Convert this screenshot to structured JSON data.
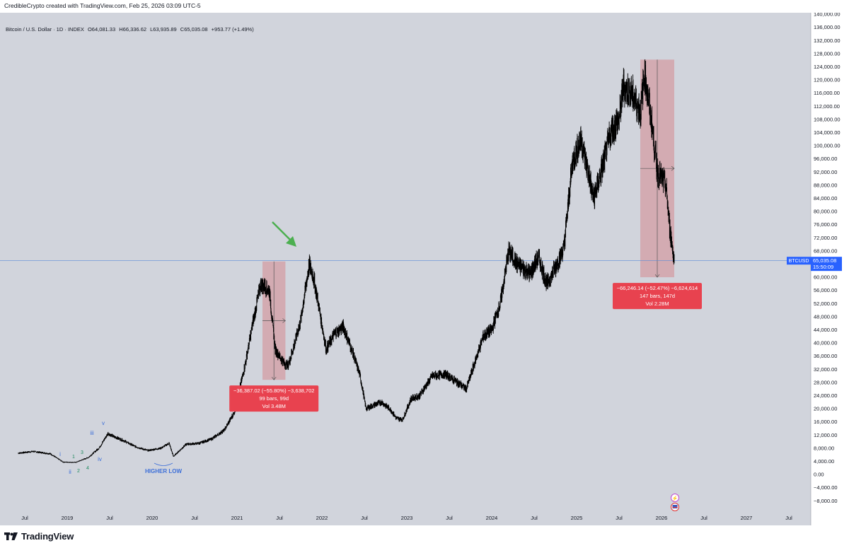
{
  "header": {
    "credit": "CredibleCrypto created with TradingView.com, Feb 25, 2026 03:09 UTC-5"
  },
  "legend": {
    "symbol": "Bitcoin / U.S. Dollar · 1D · INDEX",
    "open": "O64,081.33",
    "high": "H66,336.62",
    "low": "L63,935.89",
    "close": "C65,035.08",
    "change": "+953.77 (+1.49%)"
  },
  "colors": {
    "background": "#d1d4dc",
    "candle": "#000000",
    "box_fill": "#d4a3aa",
    "label_red": "#e8424f",
    "price_line": "#5b8cd6",
    "badge_blue": "#2962ff",
    "arrow_green": "#4caf50",
    "wave_blue": "#3d6fd8",
    "wave_green": "#1f8a5e"
  },
  "chart_data": {
    "type": "line",
    "title": "",
    "xlabel": "",
    "ylabel": "",
    "x_ticks": [
      "Jul",
      "2019",
      "Jul",
      "2020",
      "Jul",
      "2021",
      "Jul",
      "2022",
      "Jul",
      "2023",
      "Jul",
      "2024",
      "Jul",
      "2025",
      "Jul",
      "2026",
      "Jul",
      "2027",
      "Jul"
    ],
    "y_ticks": [
      "140,000.00",
      "136,000.00",
      "132,000.00",
      "128,000.00",
      "124,000.00",
      "120,000.00",
      "116,000.00",
      "112,000.00",
      "108,000.00",
      "104,000.00",
      "100,000.00",
      "96,000.00",
      "92,000.00",
      "88,000.00",
      "84,000.00",
      "80,000.00",
      "76,000.00",
      "72,000.00",
      "68,000.00",
      "64,000.00",
      "60,000.00",
      "56,000.00",
      "52,000.00",
      "48,000.00",
      "44,000.00",
      "40,000.00",
      "36,000.00",
      "32,000.00",
      "28,000.00",
      "24,000.00",
      "20,000.00",
      "16,000.00",
      "12,000.00",
      "8,000.00",
      "4,000.00",
      "0.00",
      "−4,000.00",
      "−8,000.00"
    ],
    "ylim": [
      -10000,
      142000
    ],
    "series": [
      {
        "x": [
          2018.42,
          2018.6,
          2018.8,
          2018.95,
          2019.1,
          2019.25,
          2019.38,
          2019.48,
          2019.55,
          2019.65,
          2019.8,
          2019.95,
          2020.1,
          2020.2,
          2020.25,
          2020.4,
          2020.55,
          2020.7,
          2020.85,
          2020.97,
          2021.1,
          2021.2,
          2021.28,
          2021.38,
          2021.45,
          2021.55,
          2021.6,
          2021.68,
          2021.75,
          2021.85,
          2021.9,
          2021.97,
          2022.05,
          2022.15,
          2022.25,
          2022.35,
          2022.45,
          2022.52,
          2022.6,
          2022.7,
          2022.8,
          2022.88,
          2022.95,
          2023.05,
          2023.15,
          2023.3,
          2023.45,
          2023.6,
          2023.7,
          2023.8,
          2023.9,
          2024.0,
          2024.1,
          2024.2,
          2024.3,
          2024.45,
          2024.55,
          2024.65,
          2024.75,
          2024.85,
          2024.95,
          2025.05,
          2025.1,
          2025.2,
          2025.3,
          2025.4,
          2025.5,
          2025.55,
          2025.65,
          2025.75,
          2025.8,
          2025.88,
          2025.95,
          2026.0,
          2026.05,
          2026.1,
          2026.15
        ],
        "values": [
          6500,
          7000,
          6300,
          3800,
          3700,
          5200,
          8200,
          12500,
          11500,
          10500,
          8500,
          7300,
          8000,
          9500,
          5500,
          9200,
          9500,
          10800,
          13500,
          19000,
          34000,
          48000,
          58000,
          56000,
          38000,
          34000,
          33000,
          40000,
          47000,
          64000,
          60000,
          50000,
          38000,
          43000,
          45000,
          38000,
          30000,
          20000,
          21000,
          22000,
          20000,
          17000,
          16700,
          23000,
          24000,
          30000,
          30500,
          28000,
          26000,
          34000,
          42000,
          44000,
          52000,
          68000,
          64000,
          61000,
          66000,
          58000,
          63000,
          69000,
          95000,
          102000,
          96000,
          84000,
          93000,
          104000,
          108000,
          118000,
          116000,
          110000,
          122000,
          108000,
          92000,
          90000,
          88000,
          74000,
          65035
        ]
      }
    ],
    "current_price": {
      "label": "BTCUSD",
      "price": "65,035.08",
      "timer": "15:50:09",
      "value": 65035.08
    },
    "annotations": [
      {
        "type": "range",
        "x_start": 2021.3,
        "x_end": 2021.57,
        "y_start": 64800,
        "y_end": 28800,
        "label_line1": "−36,387.02 (−55.80%) −3,638,702",
        "label_line2": "99 bars, 99d",
        "label_line3": "Vol 3.48M"
      },
      {
        "type": "range",
        "x_start": 2025.75,
        "x_end": 2026.15,
        "y_start": 126200,
        "y_end": 60000,
        "label_line1": "−66,246.14 (−52.47%) −6,624,614",
        "label_line2": "147 bars, 147d",
        "label_line3": "Vol 2.28M"
      }
    ],
    "wave_labels": {
      "blue": [
        "i",
        "ii",
        "iii",
        "iv",
        "v"
      ],
      "green": [
        "1",
        "2",
        "3",
        "4"
      ],
      "higher_low": "HIGHER LOW"
    }
  },
  "footer": {
    "brand": "TradingView"
  }
}
